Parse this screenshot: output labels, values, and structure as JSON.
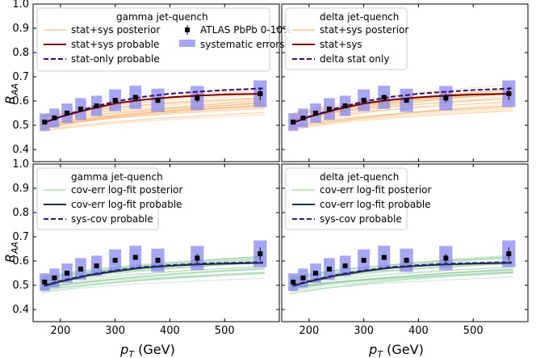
{
  "figure": {
    "ylabel_main": "R",
    "ylabel_sub": "AA",
    "xlabel_main": "p",
    "xlabel_sub": "T",
    "xlabel_unit": " (GeV)"
  },
  "colors": {
    "posterior_top": "#f4b36b",
    "posterior_bottom": "#8cc79a",
    "probable_top": "#7a0000",
    "stat_only": "#3b0a6b",
    "probable_bottom": "#1f2d3a",
    "sys_cov": "#26257a",
    "syserr_box": "#8080f0",
    "data_marker": "#000000"
  },
  "chart_data": [
    {
      "type": "line",
      "panel": "top-left",
      "legend_title": "gamma jet-quench",
      "legend_items": [
        "stat+sys posterior",
        "stat+sys probable",
        "stat-only probable",
        "ATLAS PbPb 0-10%",
        "systematic errors"
      ],
      "xlim": [
        150,
        600
      ],
      "ylim": [
        0.35,
        1.0
      ],
      "grid": false,
      "legend_position": "top",
      "series": [
        {
          "name": "stat+sys probable",
          "x": [
            170,
            200,
            250,
            300,
            350,
            400,
            450,
            500,
            570
          ],
          "y": [
            0.51,
            0.535,
            0.565,
            0.59,
            0.605,
            0.615,
            0.622,
            0.627,
            0.63
          ]
        },
        {
          "name": "stat-only probable",
          "x": [
            170,
            200,
            250,
            300,
            350,
            400,
            450,
            500,
            570
          ],
          "y": [
            0.51,
            0.535,
            0.57,
            0.598,
            0.617,
            0.63,
            0.638,
            0.645,
            0.652
          ]
        }
      ]
    },
    {
      "type": "line",
      "panel": "top-right",
      "legend_title": "delta jet-quench",
      "legend_items": [
        "stat+sys posterior",
        "stat+sys",
        "delta stat only"
      ],
      "xlim": [
        150,
        600
      ],
      "ylim": [
        0.35,
        1.0
      ],
      "grid": false,
      "legend_position": "top-left",
      "series": [
        {
          "name": "stat+sys",
          "x": [
            170,
            200,
            250,
            300,
            350,
            400,
            450,
            500,
            570
          ],
          "y": [
            0.51,
            0.535,
            0.565,
            0.59,
            0.605,
            0.615,
            0.622,
            0.627,
            0.63
          ]
        },
        {
          "name": "delta stat only",
          "x": [
            170,
            200,
            250,
            300,
            350,
            400,
            450,
            500,
            570
          ],
          "y": [
            0.51,
            0.535,
            0.57,
            0.598,
            0.617,
            0.63,
            0.638,
            0.645,
            0.652
          ]
        }
      ]
    },
    {
      "type": "line",
      "panel": "bottom-left",
      "legend_title": "gamma jet-quench",
      "legend_items": [
        "cov-err log-fit posterior",
        "cov-err log-fit probable",
        "sys-cov probable"
      ],
      "xlim": [
        150,
        600
      ],
      "ylim": [
        0.35,
        1.0
      ],
      "grid": false,
      "legend_position": "top-left",
      "series": [
        {
          "name": "cov-err log-fit probable",
          "x": [
            170,
            200,
            250,
            300,
            350,
            400,
            450,
            500,
            570
          ],
          "y": [
            0.497,
            0.515,
            0.54,
            0.558,
            0.572,
            0.58,
            0.586,
            0.589,
            0.592
          ]
        },
        {
          "name": "sys-cov probable",
          "x": [
            170,
            200,
            250,
            300,
            350,
            400,
            450,
            500,
            570
          ],
          "y": [
            0.5,
            0.518,
            0.543,
            0.561,
            0.575,
            0.583,
            0.589,
            0.592,
            0.595
          ]
        }
      ]
    },
    {
      "type": "line",
      "panel": "bottom-right",
      "legend_title": "delta jet-quench",
      "legend_items": [
        "cov-err log-fit posterior",
        "cov-err log-fit probable",
        "sys-cov probable"
      ],
      "xlim": [
        150,
        600
      ],
      "ylim": [
        0.35,
        1.0
      ],
      "grid": false,
      "legend_position": "top-left",
      "series": [
        {
          "name": "cov-err log-fit probable",
          "x": [
            170,
            200,
            250,
            300,
            350,
            400,
            450,
            500,
            570
          ],
          "y": [
            0.497,
            0.515,
            0.54,
            0.558,
            0.572,
            0.58,
            0.586,
            0.589,
            0.592
          ]
        },
        {
          "name": "sys-cov probable",
          "x": [
            170,
            200,
            250,
            300,
            350,
            400,
            450,
            500,
            570
          ],
          "y": [
            0.5,
            0.518,
            0.543,
            0.561,
            0.575,
            0.583,
            0.589,
            0.592,
            0.595
          ]
        }
      ]
    }
  ],
  "atlas_data": {
    "name": "ATLAS PbPb 0-10%",
    "x": [
      171,
      189,
      212,
      237,
      266,
      300,
      337,
      378,
      450,
      565
    ],
    "y": [
      0.513,
      0.53,
      0.55,
      0.567,
      0.58,
      0.603,
      0.615,
      0.603,
      0.612,
      0.63
    ],
    "stat_err": [
      0.006,
      0.006,
      0.006,
      0.007,
      0.007,
      0.008,
      0.009,
      0.011,
      0.017,
      0.027
    ],
    "sys_err": [
      0.036,
      0.039,
      0.04,
      0.045,
      0.042,
      0.045,
      0.048,
      0.048,
      0.05,
      0.055
    ],
    "x_halfwidth": [
      9,
      9,
      10,
      10,
      10,
      11,
      11,
      12,
      12,
      12
    ]
  },
  "axes": {
    "yticks": [
      0.4,
      0.5,
      0.6,
      0.7,
      0.8,
      0.9,
      1.0
    ],
    "yticklabels": [
      "0.4",
      "0.5",
      "0.6",
      "0.7",
      "0.8",
      "0.9",
      "1.0"
    ],
    "xticks": [
      200,
      300,
      400,
      500
    ],
    "xticklabels": [
      "200",
      "300",
      "400",
      "500"
    ]
  }
}
